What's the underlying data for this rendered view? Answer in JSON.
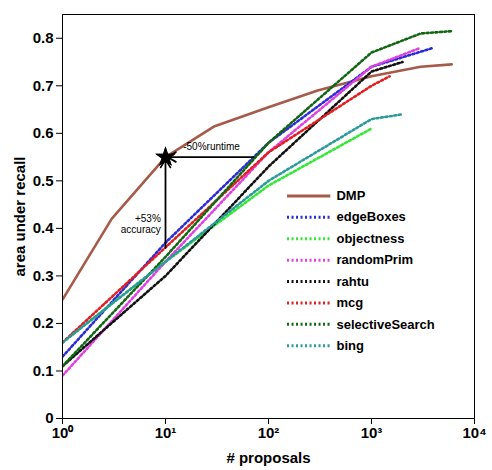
{
  "chart_data": {
    "type": "line",
    "x_label": "# proposals",
    "y_label": "area under recall",
    "log": "x",
    "grid": false,
    "legend": "bottom-right",
    "xlim": [
      1,
      10000
    ],
    "xticks": [
      {
        "value": 1,
        "label": "10⁰"
      },
      {
        "value": 10,
        "label": "10¹"
      },
      {
        "value": 100,
        "label": "10²"
      },
      {
        "value": 1000,
        "label": "10³"
      },
      {
        "value": 10000,
        "label": "10⁴"
      }
    ],
    "ylim": [
      0,
      0.85
    ],
    "yticks": [
      0,
      0.1,
      0.2,
      0.3,
      0.4,
      0.5,
      0.6,
      0.7,
      0.8
    ],
    "series": [
      {
        "name": "DMP",
        "color": "#a65a4a",
        "line_style": "solid",
        "x": [
          1,
          3,
          10,
          30,
          100,
          300,
          1000,
          3000,
          6000
        ],
        "values": [
          0.25,
          0.42,
          0.55,
          0.615,
          0.655,
          0.69,
          0.72,
          0.74,
          0.745
        ]
      },
      {
        "name": "edgeBoxes",
        "color": "#2b2bd6",
        "line_style": "dotted",
        "x": [
          1,
          10,
          100,
          1000,
          4000
        ],
        "values": [
          0.13,
          0.37,
          0.58,
          0.74,
          0.78
        ]
      },
      {
        "name": "objectness",
        "color": "#33e833",
        "line_style": "dotted",
        "x": [
          1,
          10,
          100,
          1000
        ],
        "values": [
          0.16,
          0.33,
          0.49,
          0.61
        ]
      },
      {
        "name": "randomPrim",
        "color": "#e040e0",
        "line_style": "dotted",
        "x": [
          1,
          10,
          100,
          1000,
          3000
        ],
        "values": [
          0.09,
          0.33,
          0.56,
          0.74,
          0.78
        ]
      },
      {
        "name": "rahtu",
        "color": "#111111",
        "line_style": "dotted",
        "x": [
          1,
          10,
          100,
          1000,
          2000
        ],
        "values": [
          0.11,
          0.3,
          0.53,
          0.73,
          0.75
        ]
      },
      {
        "name": "mcg",
        "color": "#e02020",
        "line_style": "dotted",
        "x": [
          1,
          10,
          100,
          1000,
          1500
        ],
        "values": [
          0.16,
          0.36,
          0.56,
          0.7,
          0.72
        ]
      },
      {
        "name": "selectiveSearch",
        "color": "#116611",
        "line_style": "dotted",
        "x": [
          1,
          10,
          100,
          1000,
          3000,
          6000
        ],
        "values": [
          0.11,
          0.34,
          0.58,
          0.77,
          0.81,
          0.815
        ]
      },
      {
        "name": "bing",
        "color": "#2a9a9a",
        "line_style": "dotted",
        "x": [
          1,
          10,
          100,
          1000,
          2000
        ],
        "values": [
          0.16,
          0.33,
          0.5,
          0.63,
          0.64
        ]
      }
    ],
    "annotations": [
      {
        "text": "+53%\naccuracy",
        "x": 9,
        "y": 0.41
      },
      {
        "text": "-50%runtime",
        "x": 28,
        "y": 0.565
      }
    ],
    "arrows": [
      {
        "x1": 10,
        "y1": 0.355,
        "x2": 10,
        "y2": 0.55,
        "marker": "star"
      },
      {
        "x1": 75,
        "y1": 0.55,
        "x2": 10,
        "y2": 0.55,
        "marker": "star"
      }
    ]
  }
}
